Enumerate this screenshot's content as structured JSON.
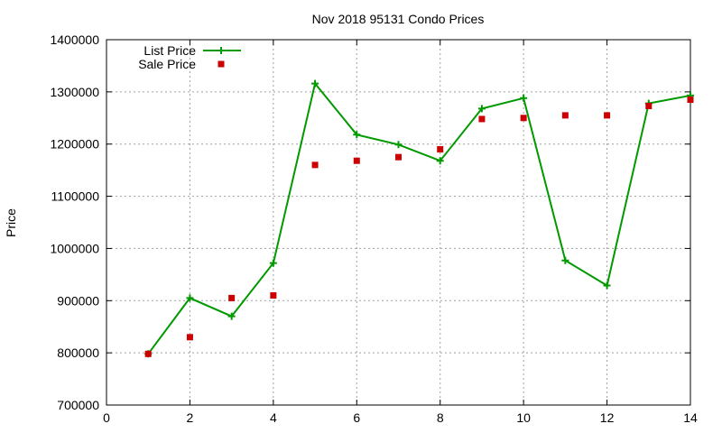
{
  "chart_data": {
    "type": "line",
    "title": "Nov 2018 95131 Condo Prices",
    "xlabel": "",
    "ylabel": "Price",
    "xlim": [
      0,
      14
    ],
    "ylim": [
      700000,
      1400000
    ],
    "xticks": [
      0,
      2,
      4,
      6,
      8,
      10,
      12,
      14
    ],
    "yticks": [
      700000,
      800000,
      900000,
      1000000,
      1100000,
      1200000,
      1300000,
      1400000
    ],
    "grid": true,
    "legend_position": "top-left",
    "series": [
      {
        "name": "List Price",
        "style": "line-with-plus-markers",
        "color": "#009900",
        "x": [
          1,
          2,
          3,
          4,
          5,
          6,
          7,
          8,
          9,
          10,
          11,
          12,
          13,
          14
        ],
        "values": [
          798000,
          905000,
          870000,
          972000,
          1316000,
          1218000,
          1199000,
          1168000,
          1268000,
          1288000,
          977000,
          929000,
          1278000,
          1293000
        ]
      },
      {
        "name": "Sale Price",
        "style": "square-markers",
        "color": "#cc0000",
        "x": [
          1,
          2,
          3,
          4,
          5,
          6,
          7,
          8,
          9,
          10,
          11,
          12,
          13,
          14
        ],
        "values": [
          798000,
          830000,
          905000,
          910000,
          1160000,
          1168000,
          1175000,
          1190000,
          1248000,
          1250000,
          1255000,
          1255000,
          1273000,
          1285000
        ]
      }
    ]
  }
}
